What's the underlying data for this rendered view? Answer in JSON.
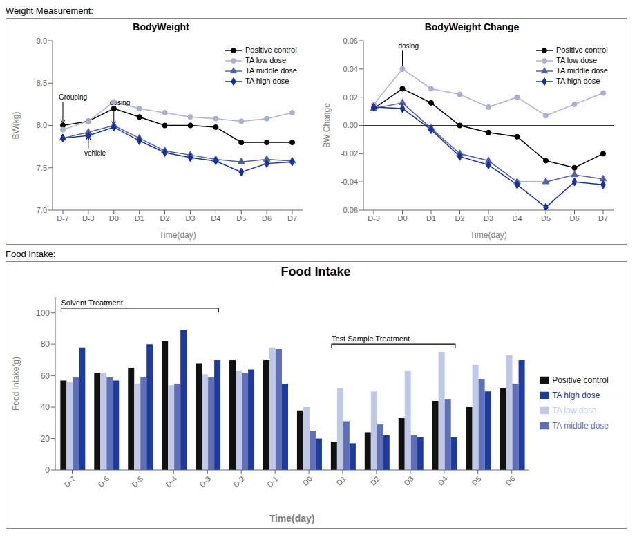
{
  "chart_data": [
    {
      "type": "line",
      "subtitle": "Weight Measurement:",
      "title": "BodyWeight",
      "xlabel": "Time(day)",
      "ylabel": "BW(kg)",
      "categories": [
        "D-7",
        "D-3",
        "D0",
        "D1",
        "D2",
        "D3",
        "D4",
        "D5",
        "D6",
        "D7"
      ],
      "series": [
        {
          "name": "Positive control",
          "color": "#000000",
          "marker": "circle",
          "values": [
            8.0,
            8.05,
            8.2,
            8.1,
            8.0,
            8.0,
            7.98,
            7.8,
            7.8,
            7.8
          ]
        },
        {
          "name": "TA low dose",
          "color": "#aab0d0",
          "marker": "circle",
          "values": [
            7.95,
            8.05,
            8.28,
            8.2,
            8.15,
            8.1,
            8.08,
            8.05,
            8.08,
            8.15
          ]
        },
        {
          "name": "TA middle dose",
          "color": "#5060a8",
          "marker": "triangle",
          "values": [
            7.85,
            7.92,
            8.0,
            7.85,
            7.7,
            7.65,
            7.6,
            7.57,
            7.6,
            7.58
          ]
        },
        {
          "name": "TA high dose",
          "color": "#1830a0",
          "marker": "diamond",
          "values": [
            7.85,
            7.88,
            7.98,
            7.82,
            7.68,
            7.62,
            7.58,
            7.45,
            7.55,
            7.57
          ]
        }
      ],
      "ylim": [
        7.0,
        9.0
      ],
      "yticks": [
        {
          "value": 7.0,
          "label": "7.0"
        },
        7.5,
        {
          "value": 8.0,
          "label": "8.0"
        },
        8.5,
        {
          "value": 9.0,
          "label": "9.0"
        }
      ],
      "grid": false,
      "legend": "upper right",
      "annotations": [
        {
          "text": "Grouping",
          "x": "D-7",
          "y": 8.02,
          "y_from": 8.28
        },
        {
          "text": "vehicle",
          "x": "D-3",
          "y": 7.88,
          "y_from": 7.73
        },
        {
          "text": "dosing",
          "x": "D0",
          "y": 8.0,
          "y_from": 8.22
        }
      ]
    },
    {
      "type": "line",
      "title": "BodyWeight Change",
      "xlabel": "Time(day)",
      "ylabel": "BW Change",
      "categories": [
        "D-3",
        "D0",
        "D1",
        "D2",
        "D3",
        "D4",
        "D5",
        "D6",
        "D7"
      ],
      "series": [
        {
          "name": "Positive control",
          "color": "#000000",
          "marker": "circle",
          "values": [
            0.012,
            0.026,
            0.016,
            0.0,
            -0.005,
            -0.008,
            -0.025,
            -0.03,
            -0.02
          ]
        },
        {
          "name": "TA low dose",
          "color": "#aab0d0",
          "marker": "circle",
          "values": [
            0.015,
            0.04,
            0.026,
            0.022,
            0.013,
            0.02,
            0.007,
            0.015,
            0.023
          ]
        },
        {
          "name": "TA middle dose",
          "color": "#5060a8",
          "marker": "triangle",
          "values": [
            0.012,
            0.016,
            -0.002,
            -0.02,
            -0.025,
            -0.04,
            -0.04,
            -0.035,
            -0.038
          ]
        },
        {
          "name": "TA high dose",
          "color": "#1830a0",
          "marker": "diamond",
          "values": [
            0.013,
            0.012,
            -0.003,
            -0.022,
            -0.028,
            -0.042,
            -0.058,
            -0.04,
            -0.042
          ]
        }
      ],
      "ylim": [
        -0.06,
        0.06
      ],
      "yticks": [
        -0.06,
        -0.04,
        -0.02,
        {
          "value": 0.0,
          "label": "0.00"
        },
        0.02,
        0.04,
        0.06
      ],
      "grid": false,
      "legend": "upper right",
      "annotations": [
        {
          "text": "dosing",
          "x": "D0",
          "y": 0.038,
          "y_from": 0.053
        }
      ]
    },
    {
      "type": "bar",
      "subtitle": "Food Intake:",
      "title": "Food Intake",
      "xlabel": "Time(day)",
      "ylabel": "Food Intake(g)",
      "categories": [
        "D-7",
        "D-6",
        "D-5",
        "D-4",
        "D-3",
        "D-2",
        "D-1",
        "D0",
        "D1",
        "D2",
        "D3",
        "D4",
        "D5",
        "D6"
      ],
      "series": [
        {
          "name": "Positive control",
          "color": "#111111",
          "values": [
            57,
            62,
            65,
            82,
            68,
            70,
            70,
            38,
            18,
            24,
            33,
            44,
            40,
            52
          ]
        },
        {
          "name": "TA low dose",
          "color": "#c0c8e8",
          "values": [
            56,
            62,
            55,
            54,
            61,
            63,
            78,
            40,
            52,
            50,
            63,
            75,
            67,
            73
          ]
        },
        {
          "name": "TA middle dose",
          "color": "#6070b8",
          "values": [
            59,
            59,
            59,
            55,
            59,
            62,
            77,
            25,
            31,
            29,
            22,
            45,
            58,
            55
          ]
        },
        {
          "name": "TA high dose",
          "color": "#1f3a9e",
          "values": [
            78,
            57,
            80,
            89,
            70,
            64,
            55,
            20,
            17,
            22,
            21,
            21,
            50,
            70
          ]
        }
      ],
      "ylim": [
        0,
        110
      ],
      "yticks": [
        0,
        20,
        40,
        60,
        80,
        100
      ],
      "grid": false,
      "legend": "right",
      "annotations": [
        {
          "text": "Solvent Treatment",
          "x_start": "D-7",
          "x_end": "D-3",
          "y": 103
        },
        {
          "text": "Test Sample Treatment",
          "x_start": "D1",
          "x_end": "D4",
          "y": 80
        }
      ]
    }
  ]
}
